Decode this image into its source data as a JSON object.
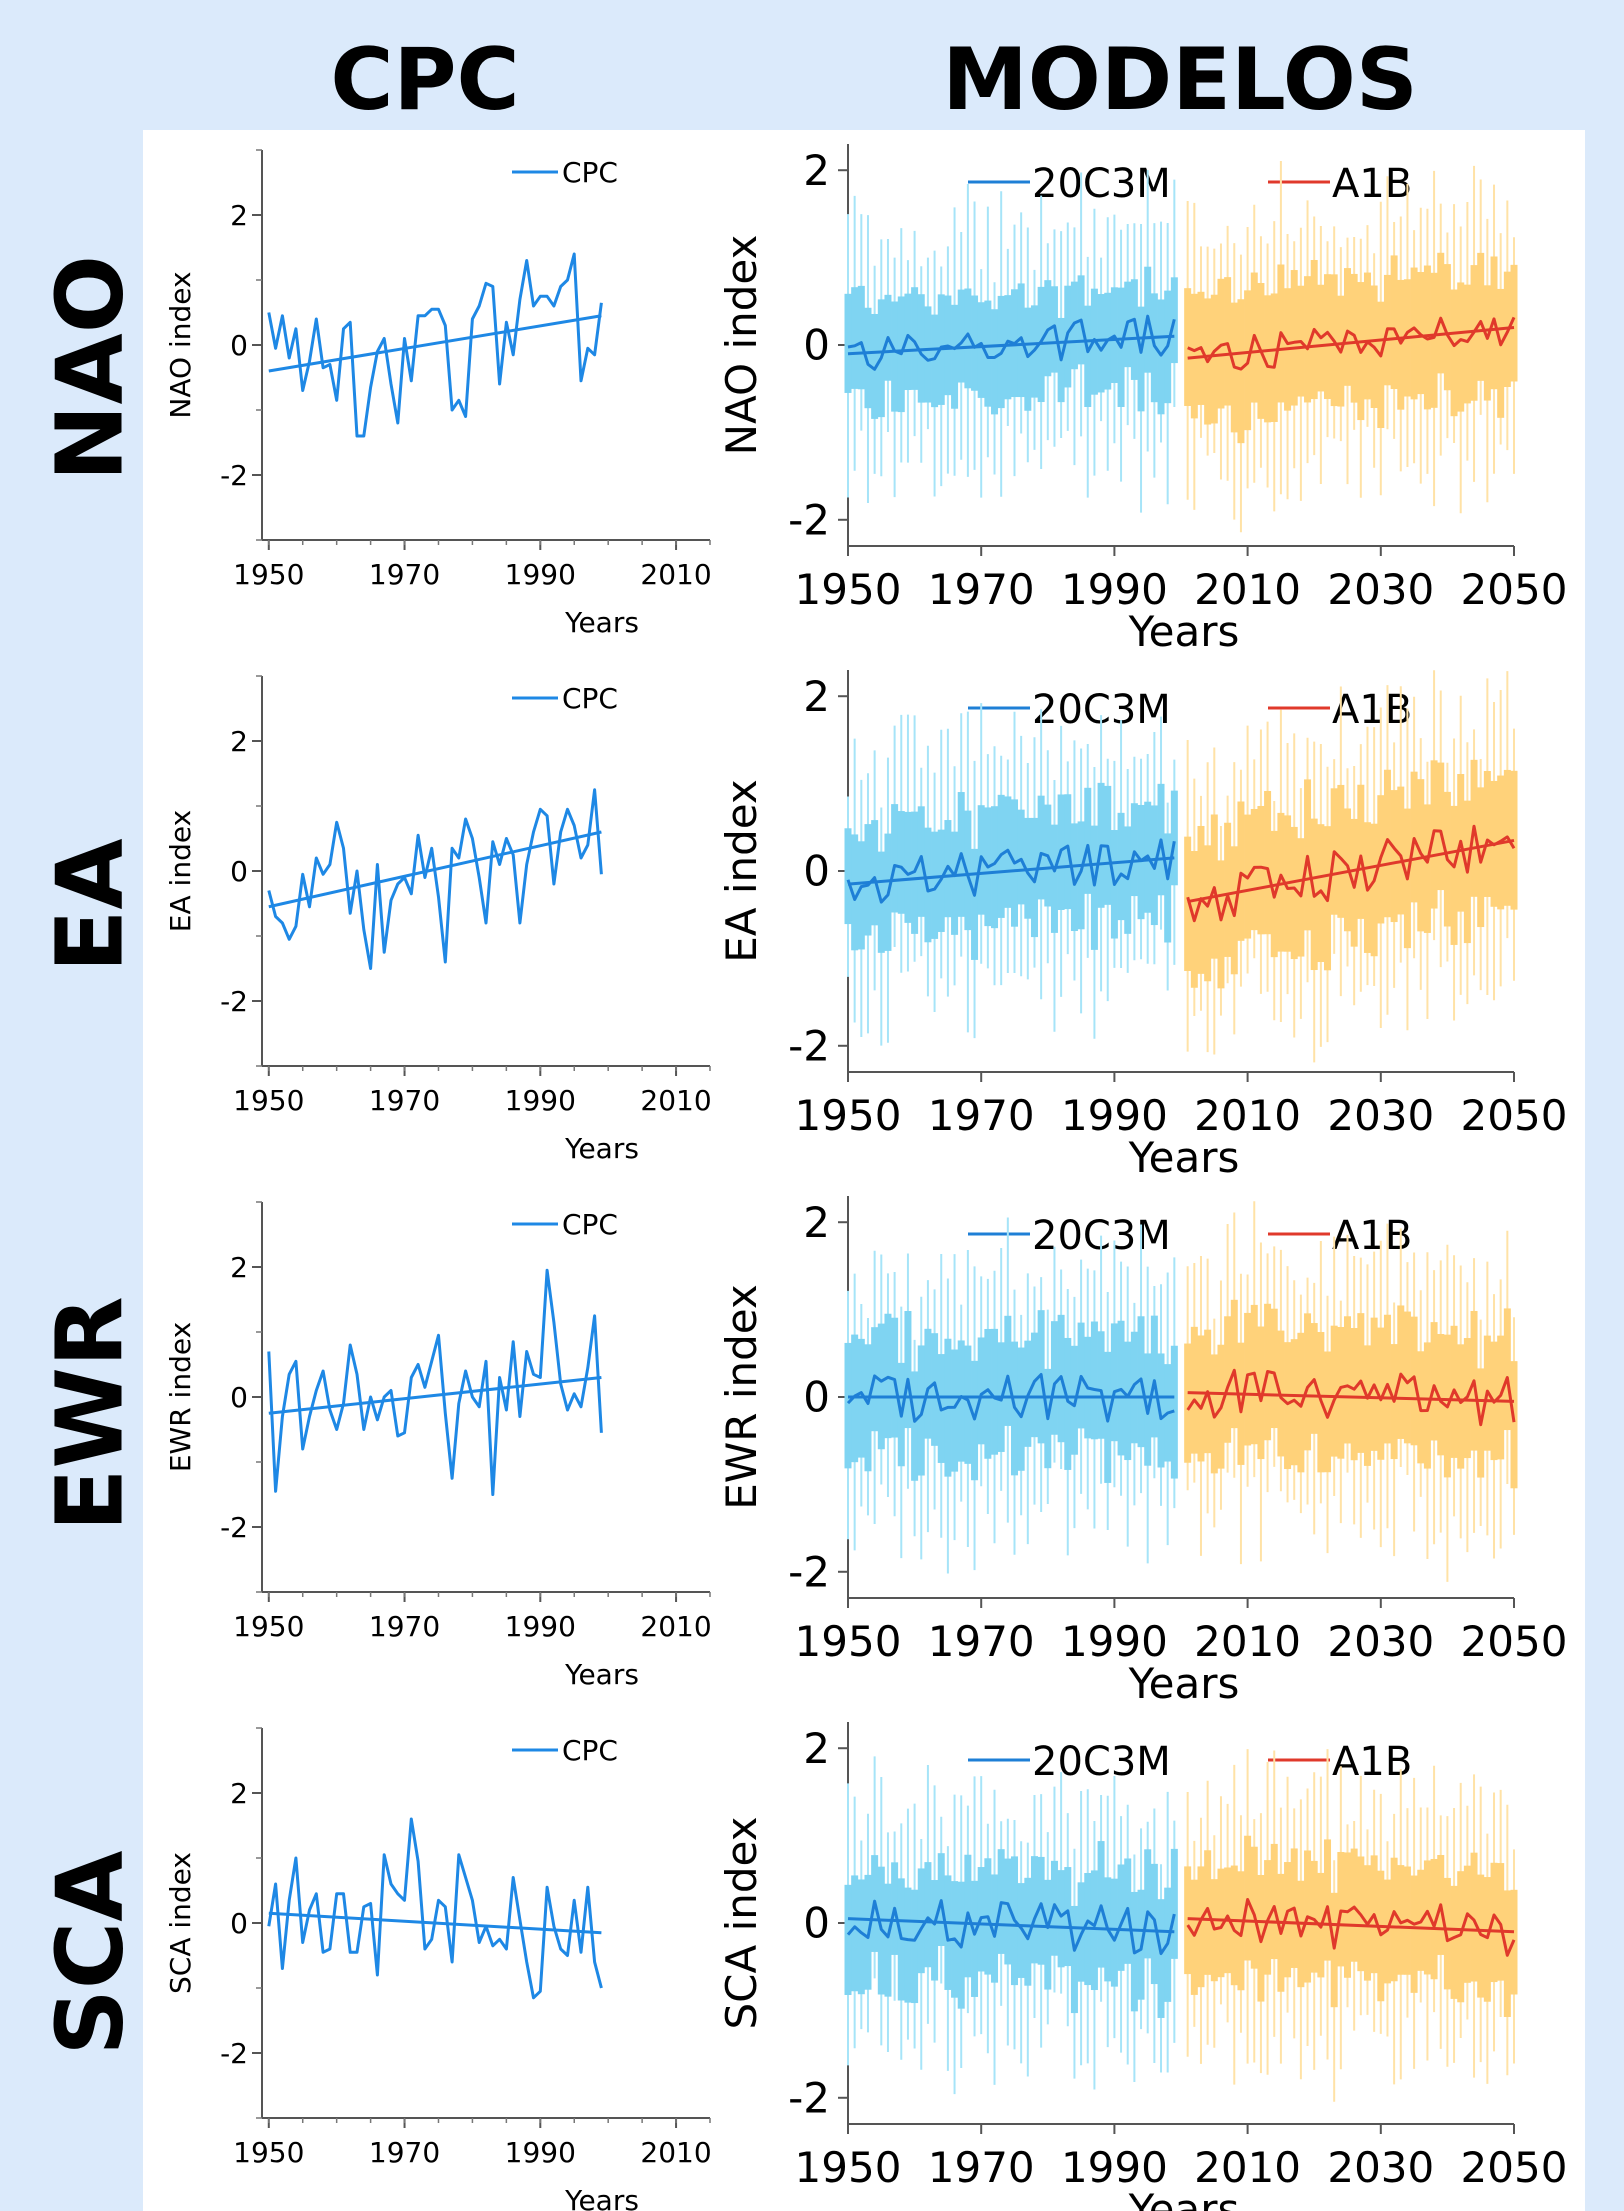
{
  "column_titles": {
    "left": "CPC",
    "right": "MODELOS"
  },
  "row_labels": [
    "NAO",
    "EA",
    "EWR",
    "SCA"
  ],
  "colors": {
    "cpc": "#1e88e5",
    "hist_line": "#1e7fd6",
    "hist_bar": "#7fd4f2",
    "hist_bar_thin": "#a6e4f8",
    "future_line": "#e0392b",
    "future_bar": "#ffd27a",
    "future_bar_thin": "#ffe2a6",
    "background": "#dbeafb"
  },
  "chart_data": [
    {
      "type": "line",
      "panel": "CPC",
      "index": "NAO",
      "ylabel": "NAO index",
      "xlabel": "Years",
      "xlim": [
        1949,
        2015
      ],
      "ylim": [
        -3,
        3
      ],
      "xticks": [
        1950,
        1970,
        1990,
        2010
      ],
      "yticks": [
        -2,
        0,
        2
      ],
      "series": [
        {
          "name": "CPC",
          "x": [
            1950,
            1951,
            1952,
            1953,
            1954,
            1955,
            1956,
            1957,
            1958,
            1959,
            1960,
            1961,
            1962,
            1963,
            1964,
            1965,
            1966,
            1967,
            1968,
            1969,
            1970,
            1971,
            1972,
            1973,
            1974,
            1975,
            1976,
            1977,
            1978,
            1979,
            1980,
            1981,
            1982,
            1983,
            1984,
            1985,
            1986,
            1987,
            1988,
            1989,
            1990,
            1991,
            1992,
            1993,
            1994,
            1995,
            1996,
            1997,
            1998,
            1999
          ],
          "y": [
            0.5,
            -0.05,
            0.45,
            -0.2,
            0.25,
            -0.7,
            -0.25,
            0.4,
            -0.35,
            -0.3,
            -0.85,
            0.25,
            0.35,
            -1.4,
            -1.4,
            -0.65,
            -0.1,
            0.1,
            -0.6,
            -1.2,
            0.1,
            -0.55,
            0.45,
            0.45,
            0.55,
            0.55,
            0.3,
            -1.0,
            -0.85,
            -1.1,
            0.4,
            0.6,
            0.95,
            0.9,
            -0.6,
            0.35,
            -0.15,
            0.7,
            1.3,
            0.6,
            0.75,
            0.75,
            0.6,
            0.9,
            1.0,
            1.4,
            -0.55,
            -0.05,
            -0.15,
            0.65
          ]
        },
        {
          "name": "",
          "kind": "trend",
          "x": [
            1950,
            1999
          ],
          "y": [
            -0.4,
            0.45
          ]
        }
      ],
      "legend": [
        "CPC"
      ]
    },
    {
      "type": "line",
      "panel": "CPC",
      "index": "EA",
      "ylabel": "EA index",
      "xlabel": "Years",
      "xlim": [
        1949,
        2015
      ],
      "ylim": [
        -3,
        3
      ],
      "xticks": [
        1950,
        1970,
        1990,
        2010
      ],
      "yticks": [
        -2,
        0,
        2
      ],
      "series": [
        {
          "name": "CPC",
          "x": [
            1950,
            1951,
            1952,
            1953,
            1954,
            1955,
            1956,
            1957,
            1958,
            1959,
            1960,
            1961,
            1962,
            1963,
            1964,
            1965,
            1966,
            1967,
            1968,
            1969,
            1970,
            1971,
            1972,
            1973,
            1974,
            1975,
            1976,
            1977,
            1978,
            1979,
            1980,
            1981,
            1982,
            1983,
            1984,
            1985,
            1986,
            1987,
            1988,
            1989,
            1990,
            1991,
            1992,
            1993,
            1994,
            1995,
            1996,
            1997,
            1998,
            1999
          ],
          "y": [
            -0.3,
            -0.7,
            -0.8,
            -1.05,
            -0.85,
            -0.05,
            -0.55,
            0.2,
            -0.05,
            0.1,
            0.75,
            0.35,
            -0.65,
            0.0,
            -0.9,
            -1.5,
            0.1,
            -1.25,
            -0.45,
            -0.2,
            -0.1,
            -0.35,
            0.55,
            -0.1,
            0.35,
            -0.4,
            -1.4,
            0.35,
            0.2,
            0.8,
            0.5,
            -0.1,
            -0.8,
            0.45,
            0.1,
            0.5,
            0.25,
            -0.8,
            0.1,
            0.6,
            0.95,
            0.85,
            -0.2,
            0.6,
            0.95,
            0.7,
            0.2,
            0.4,
            1.25,
            -0.05
          ]
        },
        {
          "name": "",
          "kind": "trend",
          "x": [
            1950,
            1999
          ],
          "y": [
            -0.55,
            0.6
          ]
        }
      ],
      "legend": [
        "CPC"
      ]
    },
    {
      "type": "line",
      "panel": "CPC",
      "index": "EWR",
      "ylabel": "EWR index",
      "xlabel": "Years",
      "xlim": [
        1949,
        2015
      ],
      "ylim": [
        -3,
        3
      ],
      "xticks": [
        1950,
        1970,
        1990,
        2010
      ],
      "yticks": [
        -2,
        0,
        2
      ],
      "series": [
        {
          "name": "CPC",
          "x": [
            1950,
            1951,
            1952,
            1953,
            1954,
            1955,
            1956,
            1957,
            1958,
            1959,
            1960,
            1961,
            1962,
            1963,
            1964,
            1965,
            1966,
            1967,
            1968,
            1969,
            1970,
            1971,
            1972,
            1973,
            1974,
            1975,
            1976,
            1977,
            1978,
            1979,
            1980,
            1981,
            1982,
            1983,
            1984,
            1985,
            1986,
            1987,
            1988,
            1989,
            1990,
            1991,
            1992,
            1993,
            1994,
            1995,
            1996,
            1997,
            1998,
            1999
          ],
          "y": [
            0.7,
            -1.45,
            -0.3,
            0.35,
            0.55,
            -0.8,
            -0.3,
            0.1,
            0.4,
            -0.2,
            -0.5,
            -0.1,
            0.8,
            0.35,
            -0.5,
            0.0,
            -0.35,
            0.0,
            0.1,
            -0.6,
            -0.55,
            0.3,
            0.5,
            0.15,
            0.55,
            0.95,
            -0.25,
            -1.25,
            -0.1,
            0.4,
            0.0,
            -0.15,
            0.55,
            -1.5,
            0.3,
            -0.2,
            0.85,
            -0.3,
            0.7,
            0.35,
            0.3,
            1.95,
            1.15,
            0.2,
            -0.2,
            0.05,
            -0.15,
            0.45,
            1.25,
            -0.55
          ]
        },
        {
          "name": "",
          "kind": "trend",
          "x": [
            1950,
            1999
          ],
          "y": [
            -0.25,
            0.3
          ]
        }
      ],
      "legend": [
        "CPC"
      ]
    },
    {
      "type": "line",
      "panel": "CPC",
      "index": "SCA",
      "ylabel": "SCA index",
      "xlabel": "Years",
      "xlim": [
        1949,
        2015
      ],
      "ylim": [
        -3,
        3
      ],
      "xticks": [
        1950,
        1970,
        1990,
        2010
      ],
      "yticks": [
        -2,
        0,
        2
      ],
      "series": [
        {
          "name": "CPC",
          "x": [
            1950,
            1951,
            1952,
            1953,
            1954,
            1955,
            1956,
            1957,
            1958,
            1959,
            1960,
            1961,
            1962,
            1963,
            1964,
            1965,
            1966,
            1967,
            1968,
            1969,
            1970,
            1971,
            1972,
            1973,
            1974,
            1975,
            1976,
            1977,
            1978,
            1979,
            1980,
            1981,
            1982,
            1983,
            1984,
            1985,
            1986,
            1987,
            1988,
            1989,
            1990,
            1991,
            1992,
            1993,
            1994,
            1995,
            1996,
            1997,
            1998,
            1999
          ],
          "y": [
            -0.05,
            0.6,
            -0.7,
            0.35,
            1.0,
            -0.3,
            0.2,
            0.45,
            -0.45,
            -0.4,
            0.45,
            0.45,
            -0.45,
            -0.45,
            0.25,
            0.3,
            -0.8,
            1.05,
            0.6,
            0.45,
            0.35,
            1.6,
            0.95,
            -0.4,
            -0.25,
            0.35,
            0.25,
            -0.6,
            1.05,
            0.7,
            0.35,
            -0.3,
            -0.05,
            -0.35,
            -0.25,
            -0.4,
            0.7,
            0.05,
            -0.6,
            -1.15,
            -1.05,
            0.55,
            -0.05,
            -0.4,
            -0.5,
            0.35,
            -0.45,
            0.55,
            -0.6,
            -1.0
          ]
        },
        {
          "name": "",
          "kind": "trend",
          "x": [
            1950,
            1999
          ],
          "y": [
            0.15,
            -0.15
          ]
        }
      ],
      "legend": [
        "CPC"
      ]
    },
    {
      "type": "line",
      "panel": "MODELOS",
      "index": "NAO",
      "ylabel": "NAO index",
      "xlabel": "Years",
      "xlim": [
        1950,
        2050
      ],
      "ylim": [
        -2.3,
        2.3
      ],
      "xticks": [
        1950,
        1970,
        1990,
        2010,
        2030,
        2050
      ],
      "yticks": [
        -2,
        0,
        2
      ],
      "series": [
        {
          "name": "20C3M",
          "start": 1950,
          "amp": 0.25,
          "spread": 0.45,
          "trend": [
            -0.1,
            0.1
          ],
          "jitter": 0.1
        },
        {
          "name": "A1B",
          "start": 2001,
          "amp": 0.2,
          "spread": 0.6,
          "trend": [
            -0.15,
            0.2
          ],
          "jitter": 0.1
        }
      ],
      "legend": [
        "20C3M",
        "A1B"
      ]
    },
    {
      "type": "line",
      "panel": "MODELOS",
      "index": "EA",
      "ylabel": "EA index",
      "xlabel": "Years",
      "xlim": [
        1950,
        2050
      ],
      "ylim": [
        -2.3,
        2.3
      ],
      "xticks": [
        1950,
        1970,
        1990,
        2010,
        2030,
        2050
      ],
      "yticks": [
        -2,
        0,
        2
      ],
      "series": [
        {
          "name": "20C3M",
          "start": 1950,
          "amp": 0.25,
          "spread": 0.5,
          "trend": [
            -0.15,
            0.15
          ],
          "jitter": 0.2
        },
        {
          "name": "A1B",
          "start": 2001,
          "amp": 0.3,
          "spread": 0.65,
          "trend": [
            -0.35,
            0.35
          ],
          "jitter": 0.3
        }
      ],
      "legend": [
        "20C3M",
        "A1B"
      ]
    },
    {
      "type": "line",
      "panel": "MODELOS",
      "index": "EWR",
      "ylabel": "EWR index",
      "xlabel": "Years",
      "xlim": [
        1950,
        2050
      ],
      "ylim": [
        -2.3,
        2.3
      ],
      "xticks": [
        1950,
        1970,
        1990,
        2010,
        2030,
        2050
      ],
      "yticks": [
        -2,
        0,
        2
      ],
      "series": [
        {
          "name": "20C3M",
          "start": 1950,
          "amp": 0.28,
          "spread": 0.55,
          "trend": [
            0.0,
            0.0
          ],
          "jitter": 0.1
        },
        {
          "name": "A1B",
          "start": 2001,
          "amp": 0.28,
          "spread": 0.6,
          "trend": [
            0.05,
            -0.05
          ],
          "jitter": 0.1
        }
      ],
      "legend": [
        "20C3M",
        "A1B"
      ]
    },
    {
      "type": "line",
      "panel": "MODELOS",
      "index": "SCA",
      "ylabel": "SCA index",
      "xlabel": "Years",
      "xlim": [
        1950,
        2050
      ],
      "ylim": [
        -2.3,
        2.3
      ],
      "xticks": [
        1950,
        1970,
        1990,
        2010,
        2030,
        2050
      ],
      "yticks": [
        -2,
        0,
        2
      ],
      "series": [
        {
          "name": "20C3M",
          "start": 1950,
          "amp": 0.28,
          "spread": 0.5,
          "trend": [
            0.05,
            -0.1
          ],
          "jitter": 0.1
        },
        {
          "name": "A1B",
          "start": 2001,
          "amp": 0.28,
          "spread": 0.55,
          "trend": [
            0.05,
            -0.1
          ],
          "jitter": 0.1
        }
      ],
      "legend": [
        "20C3M",
        "A1B"
      ]
    }
  ]
}
